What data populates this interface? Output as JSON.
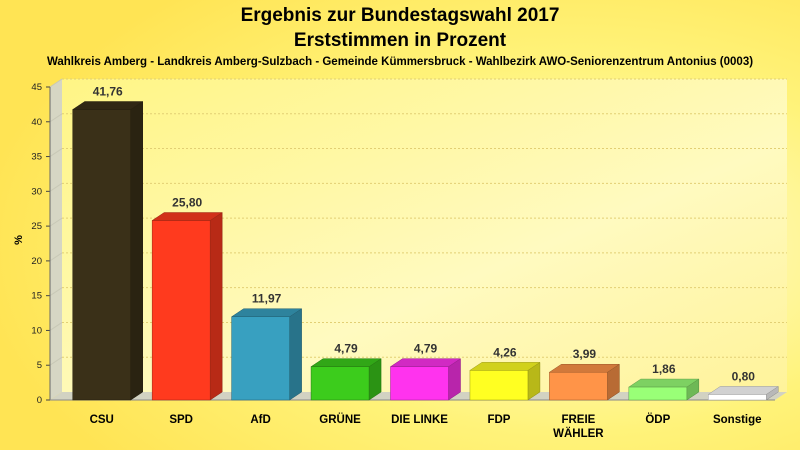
{
  "header": {
    "title_line1": "Ergebnis zur Bundestagswahl 2017",
    "title_line2": "Erststimmen in Prozent",
    "subtitle": "Wahlkreis Amberg - Landkreis Amberg-Sulzbach - Gemeinde Kümmersbruck - Wahlbezirk AWO-Seniorenzentrum Antonius (0003)"
  },
  "chart_data": {
    "type": "bar",
    "title": "Ergebnis zur Bundestagswahl 2017 - Erststimmen in Prozent",
    "subtitle": "Wahlkreis Amberg - Landkreis Amberg-Sulzbach - Gemeinde Kümmersbruck - Wahlbezirk AWO-Seniorenzentrum Antonius (0003)",
    "xlabel": "",
    "ylabel": "%",
    "ylim": [
      0,
      45
    ],
    "yticks": [
      0,
      5,
      10,
      15,
      20,
      25,
      30,
      35,
      40,
      45
    ],
    "grid": true,
    "legend": "none",
    "categories": [
      "CSU",
      "SPD",
      "AfD",
      "GRÜNE",
      "DIE LINKE",
      "FDP",
      "FREIE WÄHLER",
      "ÖDP",
      "Sonstige"
    ],
    "category_lines": [
      [
        "CSU"
      ],
      [
        "SPD"
      ],
      [
        "AfD"
      ],
      [
        "GRÜNE"
      ],
      [
        "DIE LINKE"
      ],
      [
        "FDP"
      ],
      [
        "FREIE",
        "WÄHLER"
      ],
      [
        "ÖDP"
      ],
      [
        "Sonstige"
      ]
    ],
    "values": [
      41.76,
      25.8,
      11.97,
      4.79,
      4.79,
      4.26,
      3.99,
      1.86,
      0.8
    ],
    "value_labels": [
      "41,76",
      "25,80",
      "11,97",
      "4,79",
      "4,79",
      "4,26",
      "3,99",
      "1,86",
      "0,80"
    ],
    "colors": [
      "#3a3018",
      "#ff3a1e",
      "#38a0c0",
      "#3ccc1c",
      "#ff33ee",
      "#ffff22",
      "#ff9448",
      "#99ff77",
      "#ffffff"
    ]
  }
}
